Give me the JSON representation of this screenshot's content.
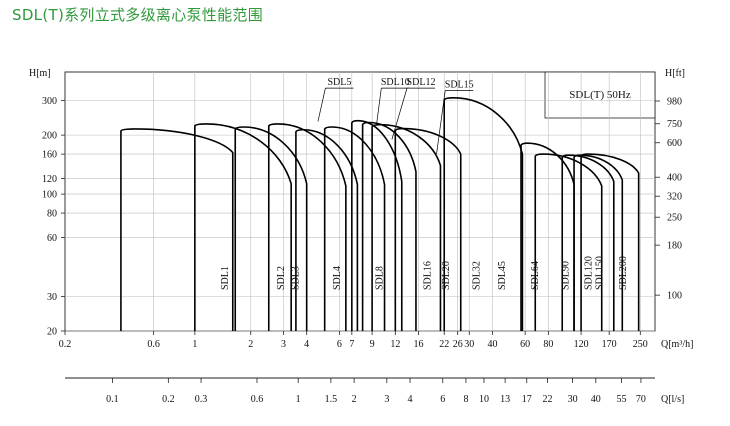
{
  "title": "SDL(T)系列立式多级离心泵性能范围",
  "chart_data": {
    "type": "line",
    "legend_box": "SDL(T) 50Hz",
    "left_axis": {
      "label": "H[m]",
      "scale": "log",
      "range": [
        20,
        420
      ],
      "ticks": [
        20,
        30,
        60,
        80,
        100,
        120,
        160,
        200,
        300
      ],
      "tick_labels": [
        "20",
        "30",
        "60",
        "80",
        "100",
        "120",
        "160",
        "200",
        "300"
      ]
    },
    "right_axis": {
      "label": "H[ft]",
      "ticks": [
        100,
        180,
        250,
        320,
        400,
        600,
        750,
        980
      ],
      "tick_labels": [
        "100",
        "180",
        "250",
        "320",
        "400",
        "600",
        "750",
        "980"
      ]
    },
    "bottom_axis_m3h": {
      "label": "Q[m³/h]",
      "scale": "log",
      "range": [
        0.2,
        300
      ],
      "ticks": [
        0.2,
        0.6,
        1,
        2,
        3,
        4,
        6,
        7,
        9,
        12,
        16,
        22,
        26,
        30,
        40,
        60,
        80,
        120,
        170,
        250
      ],
      "tick_labels": [
        "0.2",
        "0.6",
        "1",
        "2",
        "3",
        "4",
        "6",
        "7",
        "9",
        "12",
        "16",
        "22",
        "26",
        "30",
        "40",
        "60",
        "80",
        "120",
        "170",
        "250"
      ]
    },
    "bottom_axis_ls": {
      "label": "Q[l/s]",
      "ticks": [
        0.1,
        0.2,
        0.3,
        0.6,
        1,
        1.5,
        2,
        3,
        4,
        6,
        8,
        10,
        13,
        17,
        22,
        30,
        40,
        55,
        70
      ],
      "tick_labels": [
        "0.1",
        "0.2",
        "0.3",
        "0.6",
        "1",
        "1.5",
        "2",
        "3",
        "4",
        "6",
        "8",
        "10",
        "13",
        "17",
        "22",
        "30",
        "40",
        "55",
        "70"
      ]
    },
    "series": [
      {
        "name": "SDL1",
        "qmin": 0.4,
        "qmax": 1.6,
        "h_top": 215,
        "h_end": 163,
        "callout": ""
      },
      {
        "name": "SDL2",
        "qmin": 1.0,
        "qmax": 3.3,
        "h_top": 228,
        "h_end": 113,
        "callout": ""
      },
      {
        "name": "SDL3",
        "qmin": 1.65,
        "qmax": 4.0,
        "h_top": 220,
        "h_end": 113,
        "callout": ""
      },
      {
        "name": "SDL4",
        "qmin": 2.5,
        "qmax": 6.5,
        "h_top": 228,
        "h_end": 110,
        "callout": "SDL5"
      },
      {
        "name": "SDL5",
        "qmin": 3.5,
        "qmax": 7.5,
        "h_top": 213,
        "h_end": 112,
        "callout": ""
      },
      {
        "name": "SDL8",
        "qmin": 5.0,
        "qmax": 10.5,
        "h_top": 220,
        "h_end": 112,
        "callout": "SDL10"
      },
      {
        "name": "SDL10",
        "qmin": 7.0,
        "qmax": 13.0,
        "h_top": 237,
        "h_end": 116,
        "callout": "SDL12"
      },
      {
        "name": "SDL12",
        "qmin": 8.0,
        "qmax": 15.5,
        "h_top": 232,
        "h_end": 130,
        "callout": ""
      },
      {
        "name": "SDL16",
        "qmin": 9.0,
        "qmax": 21.0,
        "h_top": 226,
        "h_end": 140,
        "callout": "SDL15"
      },
      {
        "name": "SDL20",
        "qmin": 12.0,
        "qmax": 27.0,
        "h_top": 216,
        "h_end": 160,
        "callout": ""
      },
      {
        "name": "SDL32",
        "qmin": 22.0,
        "qmax": 58.0,
        "h_top": 310,
        "h_end": 160,
        "callout": ""
      },
      {
        "name": "SDL64",
        "qmin": 57.0,
        "qmax": 110.0,
        "h_top": 182,
        "h_end": 112,
        "callout": ""
      },
      {
        "name": "SDL90",
        "qmin": 68.0,
        "qmax": 155.0,
        "h_top": 160,
        "h_end": 110,
        "callout": ""
      },
      {
        "name": "SDL120",
        "qmin": 95.0,
        "qmax": 180.0,
        "h_top": 158,
        "h_end": 116,
        "callout": ""
      },
      {
        "name": "SDL150",
        "qmin": 110.0,
        "qmax": 200.0,
        "h_top": 158,
        "h_end": 118,
        "callout": ""
      },
      {
        "name": "SDL200",
        "qmin": 120.0,
        "qmax": 245.0,
        "h_top": 160,
        "h_end": 128,
        "callout": ""
      }
    ],
    "column_labels": [
      {
        "text": "SDL1",
        "q": 1.55
      },
      {
        "text": "SDL2",
        "q": 3.1
      },
      {
        "text": "SDL3",
        "q": 3.7
      },
      {
        "text": "SDL4",
        "q": 6.2
      },
      {
        "text": "SDL8",
        "q": 10.5
      },
      {
        "text": "SDL16",
        "q": 19.0
      },
      {
        "text": "SDL20",
        "q": 24.0
      },
      {
        "text": "SDL32",
        "q": 35.0
      },
      {
        "text": "SDL45",
        "q": 48.0
      },
      {
        "text": "SDL64",
        "q": 72.0
      },
      {
        "text": "SDL90",
        "q": 105.0
      },
      {
        "text": "SDL120",
        "q": 140.0
      },
      {
        "text": "SDL150",
        "q": 160.0
      },
      {
        "text": "SDL200",
        "q": 215.0
      }
    ],
    "callouts": [
      {
        "text": "SDL5",
        "q": 6.0,
        "h": 360
      },
      {
        "text": "SDL10",
        "q": 12.0,
        "h": 360
      },
      {
        "text": "SDL12",
        "q": 16.5,
        "h": 360
      },
      {
        "text": "SDL15",
        "q": 26.5,
        "h": 350
      }
    ]
  }
}
